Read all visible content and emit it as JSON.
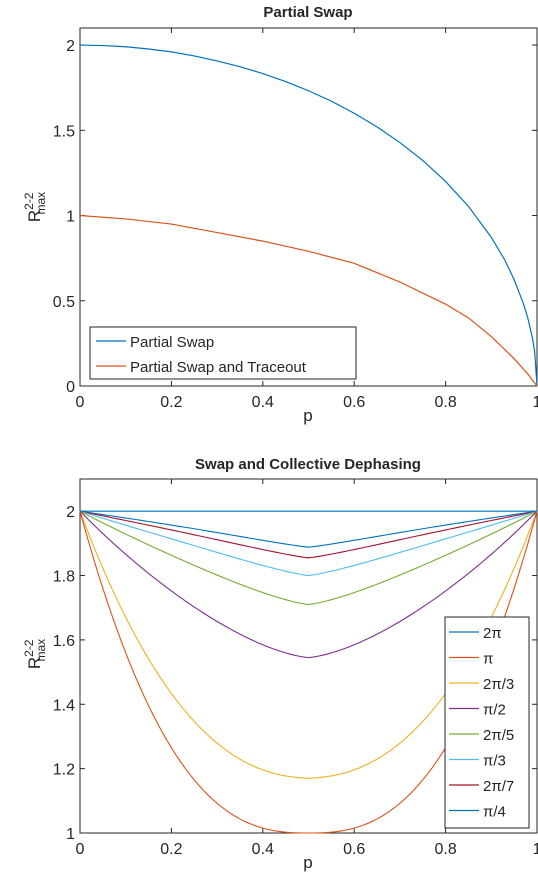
{
  "chart_data": [
    {
      "type": "line",
      "title": "Partial Swap",
      "xlabel": "p",
      "ylabel": "R",
      "ylabel_sup": "2-2",
      "ylabel_sub": "max",
      "xlim": [
        0,
        1
      ],
      "ylim": [
        0,
        2.1
      ],
      "xticks": [
        "0",
        "0.2",
        "0.4",
        "0.6",
        "0.8",
        "1"
      ],
      "yticks": [
        "0",
        "0.5",
        "1",
        "1.5",
        "2"
      ],
      "legend_position": "bottom-left",
      "series": [
        {
          "name": "Partial Swap",
          "color": "#0072BD",
          "x": [
            0,
            0.05,
            0.1,
            0.15,
            0.2,
            0.25,
            0.3,
            0.35,
            0.4,
            0.45,
            0.5,
            0.55,
            0.6,
            0.65,
            0.7,
            0.75,
            0.8,
            0.85,
            0.9,
            0.93,
            0.95,
            0.97,
            0.98,
            0.99,
            0.995,
            1
          ],
          "y": [
            2,
            1.997,
            1.99,
            1.977,
            1.96,
            1.936,
            1.907,
            1.873,
            1.833,
            1.786,
            1.732,
            1.671,
            1.6,
            1.52,
            1.428,
            1.323,
            1.2,
            1.054,
            0.872,
            0.737,
            0.624,
            0.485,
            0.398,
            0.282,
            0.2,
            0
          ]
        },
        {
          "name": "Partial Swap and Traceout",
          "color": "#D95319",
          "x": [
            0,
            0.1,
            0.2,
            0.3,
            0.4,
            0.5,
            0.6,
            0.7,
            0.8,
            0.85,
            0.9,
            0.95,
            0.98,
            1
          ],
          "y": [
            1,
            0.98,
            0.95,
            0.9,
            0.85,
            0.79,
            0.72,
            0.61,
            0.48,
            0.4,
            0.29,
            0.16,
            0.07,
            0
          ]
        }
      ]
    },
    {
      "type": "line",
      "title": "Swap and Collective Dephasing",
      "xlabel": "p",
      "ylabel": "R",
      "ylabel_sup": "2-2",
      "ylabel_sub": "max",
      "xlim": [
        0,
        1
      ],
      "ylim": [
        1,
        2.1
      ],
      "xticks": [
        "0",
        "0.2",
        "0.4",
        "0.6",
        "0.8",
        "1"
      ],
      "yticks": [
        "1",
        "1.2",
        "1.4",
        "1.6",
        "1.8",
        "2"
      ],
      "legend_position": "right",
      "series": [
        {
          "name": "2π",
          "color": "#0072BD",
          "min": 2.0
        },
        {
          "name": "π",
          "color": "#D95319",
          "min": 1.0
        },
        {
          "name": "2π/3",
          "color": "#EDB120",
          "min": 1.17
        },
        {
          "name": "π/2",
          "color": "#7E2F8E",
          "min": 1.545
        },
        {
          "name": "2π/5",
          "color": "#77AC30",
          "min": 1.71
        },
        {
          "name": "π/3",
          "color": "#4DBEEE",
          "min": 1.8
        },
        {
          "name": "2π/7",
          "color": "#A2142F",
          "min": 1.855
        },
        {
          "name": "π/4",
          "color": "#0072BD",
          "min": 1.888
        }
      ]
    }
  ]
}
